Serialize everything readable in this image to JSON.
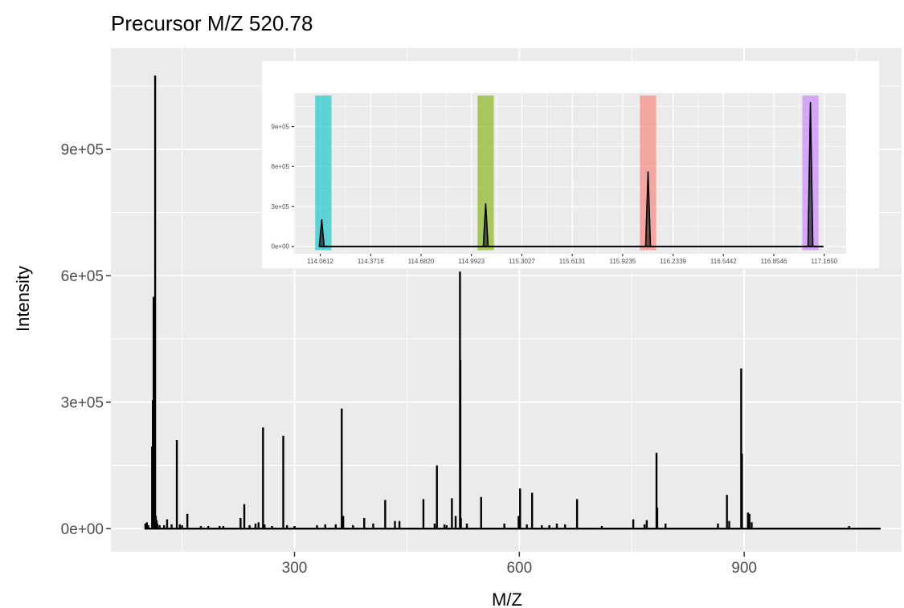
{
  "chart_data": [
    {
      "type": "line",
      "title": "Precursor M/Z 520.78",
      "xlabel": "M/Z",
      "ylabel": "Intensity",
      "xlim": [
        55,
        1110
      ],
      "ylim": [
        -55000,
        1140000
      ],
      "x_ticks": [
        300,
        600,
        900
      ],
      "x_tick_labels": [
        "300",
        "600",
        "900"
      ],
      "y_ticks": [
        0,
        300000,
        600000,
        900000
      ],
      "y_tick_labels": [
        "0e+00",
        "3e+05",
        "6e+05",
        "9e+05"
      ],
      "baseline_range": [
        100,
        1082
      ],
      "grid": true,
      "peaks": [
        {
          "x": 101,
          "y": 12000
        },
        {
          "x": 103,
          "y": 15000
        },
        {
          "x": 105,
          "y": 8000
        },
        {
          "x": 110,
          "y": 195000
        },
        {
          "x": 111,
          "y": 305000
        },
        {
          "x": 112,
          "y": 550000
        },
        {
          "x": 113,
          "y": 20000
        },
        {
          "x": 114.06,
          "y": 1075000
        },
        {
          "x": 115,
          "y": 30000
        },
        {
          "x": 116,
          "y": 20000
        },
        {
          "x": 117,
          "y": 12000
        },
        {
          "x": 120,
          "y": 8000
        },
        {
          "x": 126,
          "y": 8000
        },
        {
          "x": 130,
          "y": 22000
        },
        {
          "x": 136,
          "y": 10000
        },
        {
          "x": 143,
          "y": 210000
        },
        {
          "x": 147,
          "y": 10000
        },
        {
          "x": 150,
          "y": 8000
        },
        {
          "x": 157,
          "y": 35000
        },
        {
          "x": 175,
          "y": 6000
        },
        {
          "x": 185,
          "y": 6000
        },
        {
          "x": 200,
          "y": 6000
        },
        {
          "x": 205,
          "y": 6000
        },
        {
          "x": 228,
          "y": 25000
        },
        {
          "x": 233,
          "y": 58000
        },
        {
          "x": 240,
          "y": 8000
        },
        {
          "x": 248,
          "y": 12000
        },
        {
          "x": 252,
          "y": 15000
        },
        {
          "x": 258,
          "y": 240000
        },
        {
          "x": 260,
          "y": 10000
        },
        {
          "x": 270,
          "y": 6000
        },
        {
          "x": 285,
          "y": 220000
        },
        {
          "x": 290,
          "y": 8000
        },
        {
          "x": 300,
          "y": 6000
        },
        {
          "x": 330,
          "y": 8000
        },
        {
          "x": 341,
          "y": 10000
        },
        {
          "x": 355,
          "y": 10000
        },
        {
          "x": 363,
          "y": 285000
        },
        {
          "x": 365,
          "y": 30000
        },
        {
          "x": 378,
          "y": 8000
        },
        {
          "x": 393,
          "y": 25000
        },
        {
          "x": 405,
          "y": 12000
        },
        {
          "x": 421,
          "y": 68000
        },
        {
          "x": 434,
          "y": 18000
        },
        {
          "x": 440,
          "y": 18000
        },
        {
          "x": 472,
          "y": 70000
        },
        {
          "x": 487,
          "y": 12000
        },
        {
          "x": 490,
          "y": 150000
        },
        {
          "x": 500,
          "y": 10000
        },
        {
          "x": 503,
          "y": 8000
        },
        {
          "x": 510,
          "y": 72000
        },
        {
          "x": 515,
          "y": 30000
        },
        {
          "x": 520.78,
          "y": 610000
        },
        {
          "x": 521.3,
          "y": 400000
        },
        {
          "x": 522,
          "y": 25000
        },
        {
          "x": 530,
          "y": 12000
        },
        {
          "x": 549,
          "y": 75000
        },
        {
          "x": 580,
          "y": 12000
        },
        {
          "x": 599,
          "y": 30000
        },
        {
          "x": 601,
          "y": 95000
        },
        {
          "x": 610,
          "y": 10000
        },
        {
          "x": 617,
          "y": 85000
        },
        {
          "x": 630,
          "y": 8000
        },
        {
          "x": 640,
          "y": 8000
        },
        {
          "x": 650,
          "y": 12000
        },
        {
          "x": 661,
          "y": 10000
        },
        {
          "x": 677,
          "y": 70000
        },
        {
          "x": 710,
          "y": 6000
        },
        {
          "x": 752,
          "y": 22000
        },
        {
          "x": 767,
          "y": 10000
        },
        {
          "x": 770,
          "y": 20000
        },
        {
          "x": 783,
          "y": 180000
        },
        {
          "x": 784,
          "y": 50000
        },
        {
          "x": 795,
          "y": 12000
        },
        {
          "x": 865,
          "y": 12000
        },
        {
          "x": 877,
          "y": 80000
        },
        {
          "x": 880,
          "y": 18000
        },
        {
          "x": 896,
          "y": 380000
        },
        {
          "x": 897,
          "y": 178000
        },
        {
          "x": 905,
          "y": 38000
        },
        {
          "x": 907,
          "y": 35000
        },
        {
          "x": 910,
          "y": 15000
        },
        {
          "x": 1040,
          "y": 6000
        }
      ]
    },
    {
      "type": "line",
      "title": "",
      "xlabel": "",
      "ylabel": "",
      "xlim": [
        113.9,
        117.3
      ],
      "ylim": [
        -55000,
        1150000
      ],
      "x_ticks": [
        114.0612,
        114.3716,
        114.682,
        114.9923,
        115.3027,
        115.6131,
        115.9235,
        116.2339,
        116.5442,
        116.8546,
        117.165
      ],
      "x_tick_labels": [
        "114.0612",
        "114.3716",
        "114.6820",
        "114.9923",
        "115.3027",
        "115.6131",
        "115.9235",
        "116.2339",
        "116.5442",
        "116.8546",
        "117.1650"
      ],
      "y_ticks": [
        0,
        300000,
        600000,
        900000
      ],
      "y_tick_labels": [
        "0e+00",
        "3e+05",
        "6e+05",
        "9e+05"
      ],
      "grid": true,
      "baseline_range": [
        114.06,
        117.16
      ],
      "reporter_windows": [
        {
          "x_min": 114.03,
          "x_max": 114.13,
          "color": "#00BFC4"
        },
        {
          "x_min": 115.03,
          "x_max": 115.13,
          "color": "#7CAE00"
        },
        {
          "x_min": 116.03,
          "x_max": 116.13,
          "color": "#F8766D"
        },
        {
          "x_min": 117.03,
          "x_max": 117.13,
          "color": "#C77CFF"
        }
      ],
      "peaks": [
        {
          "x": 114.07,
          "y": 200000
        },
        {
          "x": 115.08,
          "y": 320000
        },
        {
          "x": 116.08,
          "y": 560000
        },
        {
          "x": 117.08,
          "y": 1080000
        }
      ]
    }
  ]
}
